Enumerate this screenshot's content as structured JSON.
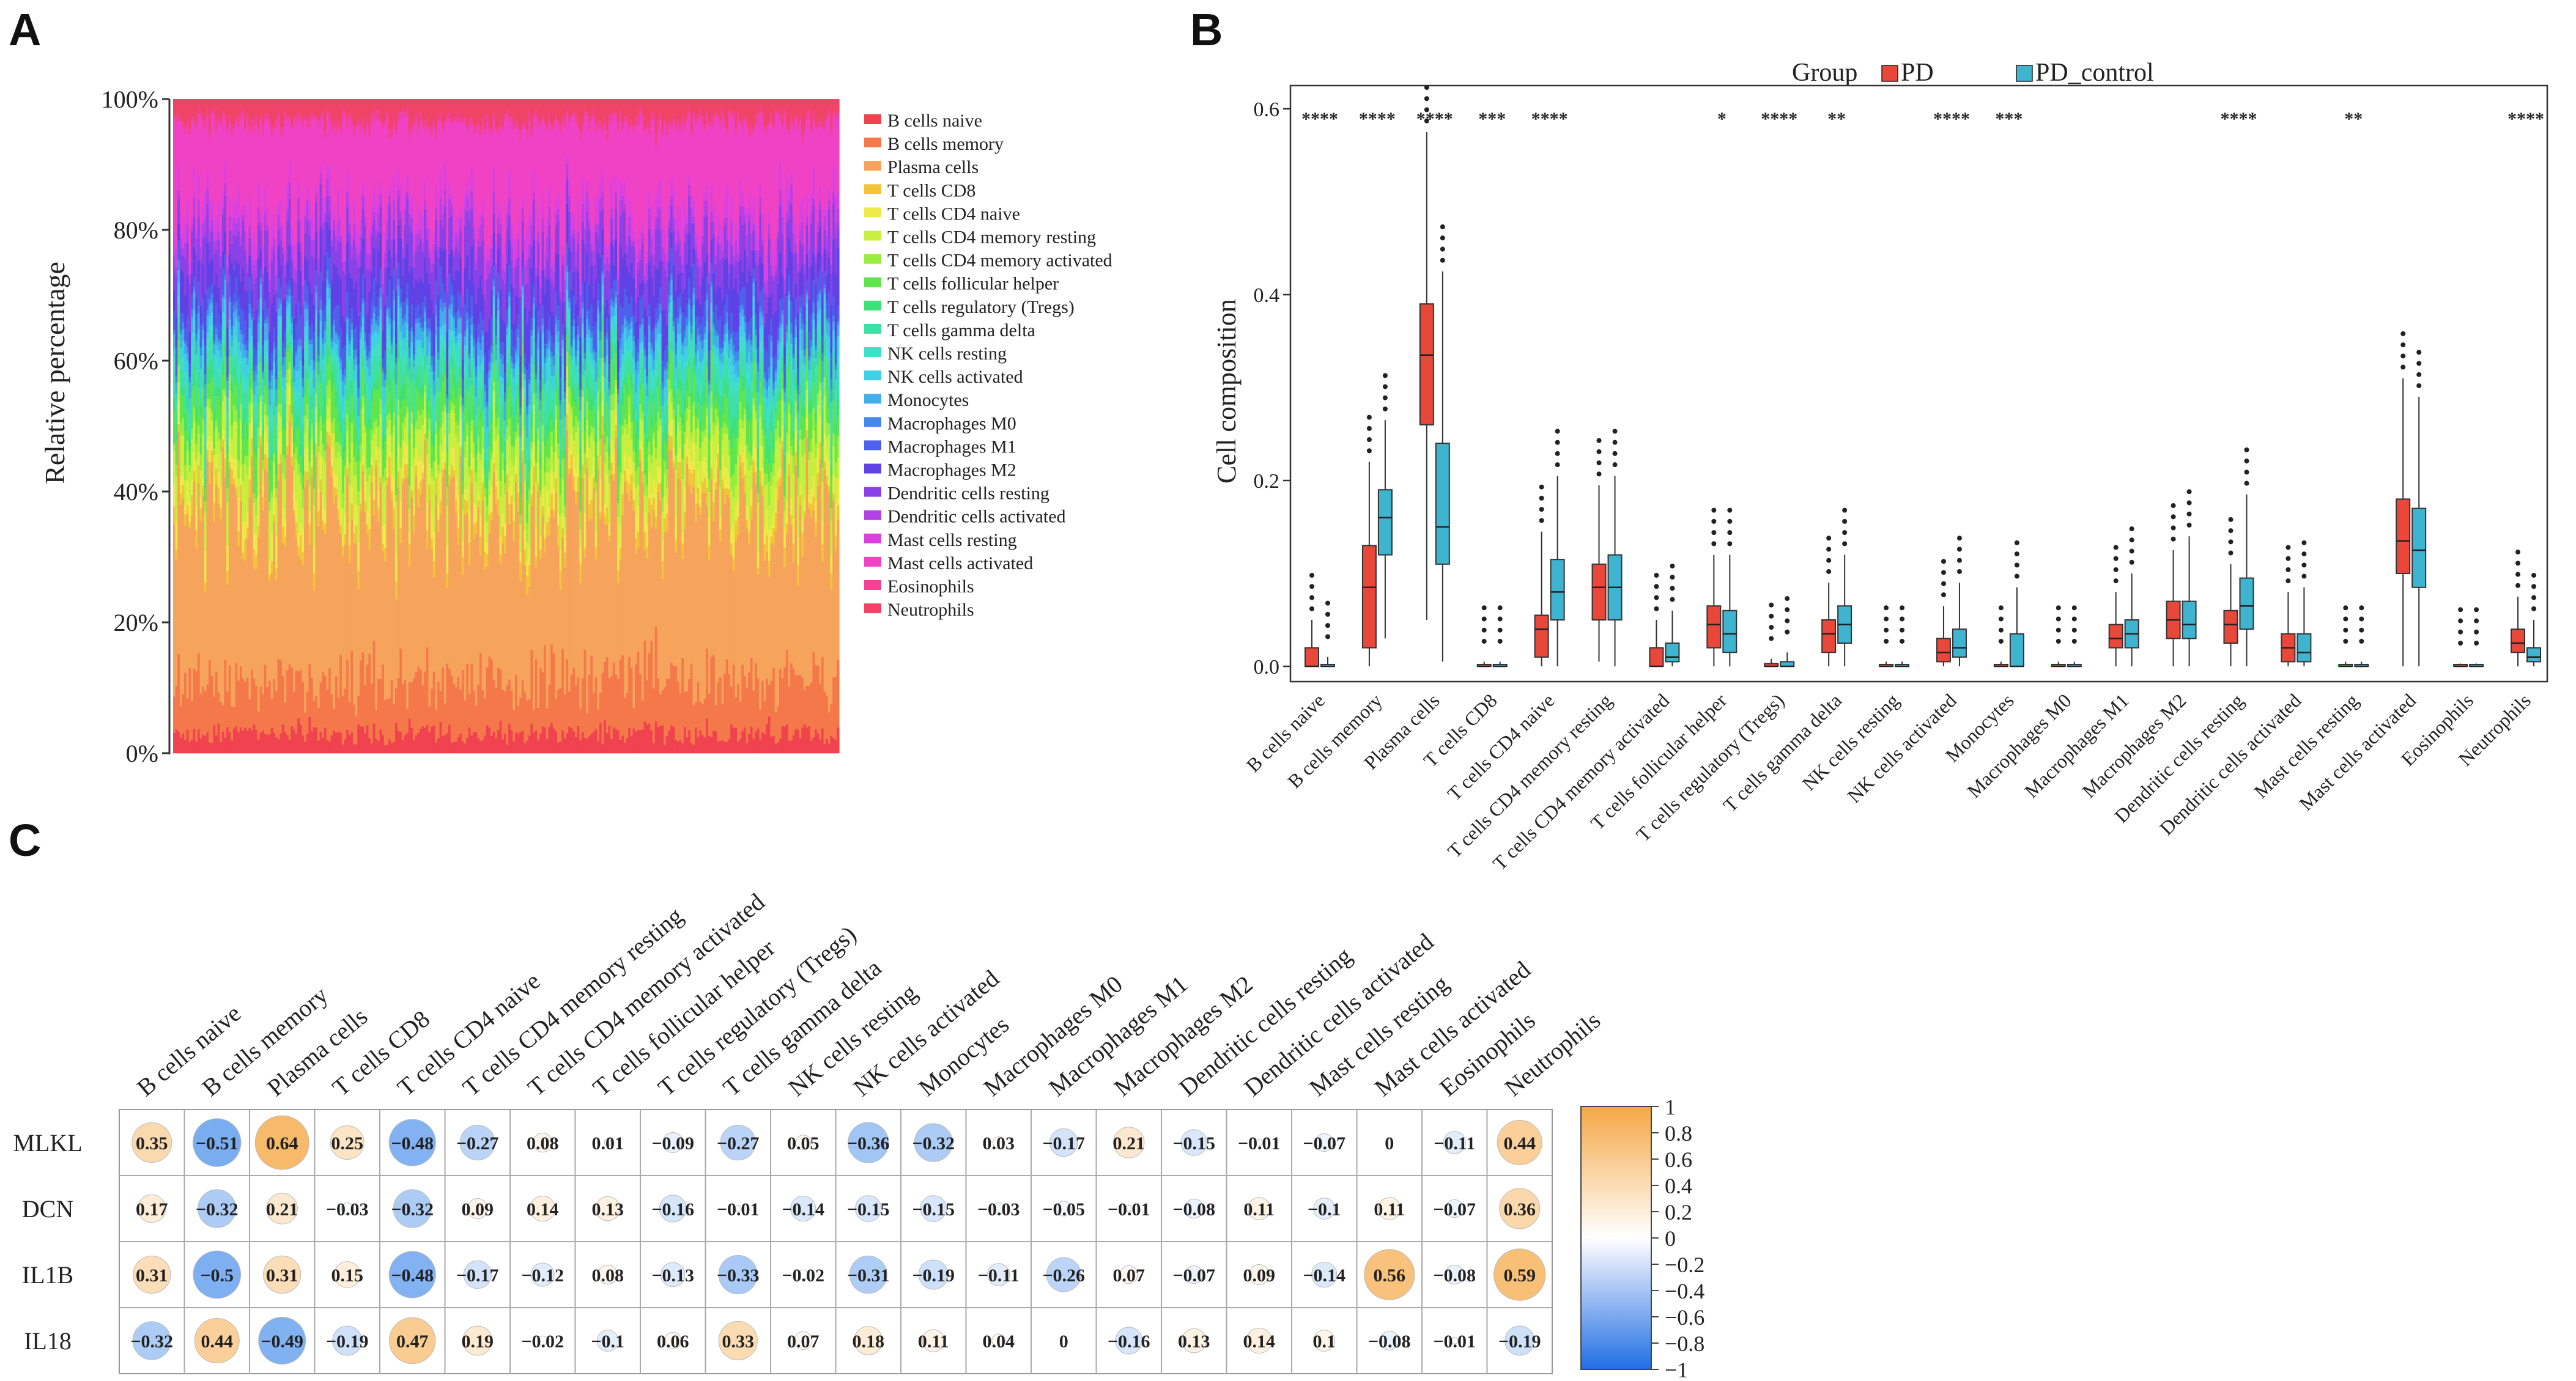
{
  "panels": {
    "a": "A",
    "b": "B",
    "c": "C"
  },
  "cell_types": [
    "B cells naive",
    "B cells memory",
    "Plasma cells",
    "T cells CD8",
    "T cells CD4 naive",
    "T cells CD4 memory resting",
    "T cells CD4 memory activated",
    "T cells follicular helper",
    "T cells regulatory (Tregs)",
    "T cells gamma delta",
    "NK cells resting",
    "NK cells activated",
    "Monocytes",
    "Macrophages M0",
    "Macrophages M1",
    "Macrophages M2",
    "Dendritic cells resting",
    "Dendritic cells activated",
    "Mast cells resting",
    "Mast cells activated",
    "Eosinophils",
    "Neutrophils"
  ],
  "colors": {
    "stack": [
      "#f0434f",
      "#f47849",
      "#f6a35c",
      "#f2c43a",
      "#eee949",
      "#c8ef3f",
      "#99ec40",
      "#5fe64e",
      "#3fe07a",
      "#3fe0a8",
      "#3fdfc8",
      "#3fd0e6",
      "#42aeea",
      "#4488ea",
      "#4d61ea",
      "#5f42e6",
      "#8a42e6",
      "#b342e6",
      "#d942e0",
      "#f042c4",
      "#f24296",
      "#f04466"
    ],
    "pd": "#e8473a",
    "pd_control": "#3fb4d1",
    "neg": "#2f7fe8",
    "pos": "#f5a845"
  },
  "chart_data": [
    {
      "type": "area",
      "title": "",
      "xlabel": "",
      "ylabel": "Relative percentage",
      "ylim": [
        0,
        100
      ],
      "ytick_labels": [
        "0%",
        "20%",
        "40%",
        "60%",
        "80%",
        "100%"
      ],
      "legend_title": "",
      "series": [
        {
          "name": "B cells naive",
          "values": [
            3.0
          ]
        },
        {
          "name": "B cells memory",
          "values": [
            8.0
          ]
        },
        {
          "name": "Plasma cells",
          "values": [
            26.0
          ]
        },
        {
          "name": "T cells CD8",
          "values": [
            2.0
          ]
        },
        {
          "name": "T cells CD4 naive",
          "values": [
            3.0
          ]
        },
        {
          "name": "T cells CD4 memory resting",
          "values": [
            5.0
          ]
        },
        {
          "name": "T cells CD4 memory activated",
          "values": [
            2.0
          ]
        },
        {
          "name": "T cells follicular helper",
          "values": [
            4.0
          ]
        },
        {
          "name": "T cells regulatory (Tregs)",
          "values": [
            2.0
          ]
        },
        {
          "name": "T cells gamma delta",
          "values": [
            3.0
          ]
        },
        {
          "name": "NK cells resting",
          "values": [
            2.0
          ]
        },
        {
          "name": "NK cells activated",
          "values": [
            2.0
          ]
        },
        {
          "name": "Monocytes",
          "values": [
            2.0
          ]
        },
        {
          "name": "Macrophages M0",
          "values": [
            1.0
          ]
        },
        {
          "name": "Macrophages M1",
          "values": [
            3.0
          ]
        },
        {
          "name": "Macrophages M2",
          "values": [
            5.0
          ]
        },
        {
          "name": "Dendritic cells resting",
          "values": [
            5.0
          ]
        },
        {
          "name": "Dendritic cells activated",
          "values": [
            2.0
          ]
        },
        {
          "name": "Mast cells resting",
          "values": [
            3.0
          ]
        },
        {
          "name": "Mast cells activated",
          "values": [
            14.0
          ]
        },
        {
          "name": "Eosinophils",
          "values": [
            1.0
          ]
        },
        {
          "name": "Neutrophils",
          "values": [
            3.0
          ]
        }
      ]
    },
    {
      "type": "box",
      "title": "",
      "xlabel": "",
      "ylabel": "Cell composition",
      "ylim": [
        0,
        0.6
      ],
      "ytick_labels": [
        "0.0",
        "0.2",
        "0.4",
        "0.6"
      ],
      "legend_title": "Group",
      "groups": [
        "PD",
        "PD_control"
      ],
      "categories": [
        "B cells naive",
        "B cells memory",
        "Plasma cells",
        "T cells CD8",
        "T cells CD4 naive",
        "T cells CD4 memory resting",
        "T cells CD4 memory activated",
        "T cells follicular helper",
        "T cells regulatory (Tregs)",
        "T cells gamma delta",
        "NK cells resting",
        "NK cells activated",
        "Monocytes",
        "Macrophages M0",
        "Macrophages M1",
        "Macrophages M2",
        "Dendritic cells resting",
        "Dendritic cells activated",
        "Mast cells resting",
        "Mast cells activated",
        "Eosinophils",
        "Neutrophils"
      ],
      "significance": [
        "****",
        "****",
        "****",
        "***",
        "****",
        "",
        "",
        "*",
        "****",
        "**",
        "",
        "****",
        "***",
        "",
        "",
        "",
        "****",
        "",
        "**",
        "",
        "",
        "****"
      ],
      "series": [
        {
          "name": "PD",
          "boxes": [
            [
              0,
              0,
              0,
              0.02,
              0.05
            ],
            [
              0,
              0.02,
              0.085,
              0.13,
              0.22
            ],
            [
              0.05,
              0.26,
              0.335,
              0.39,
              0.575
            ],
            [
              0,
              0,
              0,
              0.002,
              0.005
            ],
            [
              0,
              0.01,
              0.04,
              0.055,
              0.145
            ],
            [
              0.005,
              0.05,
              0.085,
              0.11,
              0.195
            ],
            [
              0,
              0,
              0,
              0.02,
              0.05
            ],
            [
              0,
              0.02,
              0.045,
              0.065,
              0.12
            ],
            [
              0,
              0,
              0,
              0.003,
              0.008
            ],
            [
              0,
              0.015,
              0.035,
              0.05,
              0.09
            ],
            [
              0,
              0,
              0,
              0.002,
              0.005
            ],
            [
              0,
              0.005,
              0.015,
              0.03,
              0.065
            ],
            [
              0,
              0,
              0,
              0.002,
              0.005
            ],
            [
              0,
              0,
              0,
              0.002,
              0.005
            ],
            [
              0,
              0.02,
              0.03,
              0.045,
              0.08
            ],
            [
              0,
              0.03,
              0.05,
              0.07,
              0.125
            ],
            [
              0,
              0.025,
              0.045,
              0.06,
              0.11
            ],
            [
              0,
              0.005,
              0.02,
              0.035,
              0.08
            ],
            [
              0,
              0,
              0,
              0.002,
              0.005
            ],
            [
              0,
              0.1,
              0.135,
              0.18,
              0.31
            ],
            [
              0,
              0,
              0,
              0.002,
              0.003
            ],
            [
              0,
              0.015,
              0.025,
              0.04,
              0.075
            ]
          ]
        },
        {
          "name": "PD_control",
          "boxes": [
            [
              0,
              0,
              0,
              0.002,
              0.01
            ],
            [
              0.03,
              0.12,
              0.16,
              0.19,
              0.265
            ],
            [
              0.005,
              0.11,
              0.15,
              0.24,
              0.425
            ],
            [
              0,
              0,
              0,
              0.002,
              0.005
            ],
            [
              0,
              0.05,
              0.08,
              0.115,
              0.205
            ],
            [
              0,
              0.05,
              0.085,
              0.12,
              0.205
            ],
            [
              0,
              0.005,
              0.01,
              0.025,
              0.06
            ],
            [
              0,
              0.015,
              0.035,
              0.06,
              0.12
            ],
            [
              0,
              0,
              0,
              0.005,
              0.015
            ],
            [
              0,
              0.025,
              0.045,
              0.065,
              0.12
            ],
            [
              0,
              0,
              0,
              0.002,
              0.005
            ],
            [
              0,
              0.01,
              0.02,
              0.04,
              0.09
            ],
            [
              0,
              0,
              0,
              0.035,
              0.085
            ],
            [
              0,
              0,
              0,
              0.002,
              0.005
            ],
            [
              0,
              0.02,
              0.035,
              0.05,
              0.1
            ],
            [
              0,
              0.03,
              0.045,
              0.07,
              0.14
            ],
            [
              0,
              0.04,
              0.065,
              0.095,
              0.185
            ],
            [
              0,
              0.005,
              0.015,
              0.035,
              0.085
            ],
            [
              0,
              0,
              0,
              0.002,
              0.005
            ],
            [
              0,
              0.085,
              0.125,
              0.17,
              0.29
            ],
            [
              0,
              0,
              0,
              0.002,
              0.003
            ],
            [
              0,
              0.005,
              0.01,
              0.02,
              0.05
            ]
          ]
        }
      ]
    },
    {
      "type": "heatmap",
      "title": "",
      "xlabel": "",
      "ylabel": "",
      "columns": [
        "B cells naive",
        "B cells memory",
        "Plasma cells",
        "T cells CD8",
        "T cells CD4 naive",
        "T cells CD4 memory resting",
        "T cells CD4 memory activated",
        "T cells follicular helper",
        "T cells regulatory (Tregs)",
        "T cells gamma delta",
        "NK cells resting",
        "NK cells activated",
        "Monocytes",
        "Macrophages M0",
        "Macrophages M1",
        "Macrophages M2",
        "Dendritic cells resting",
        "Dendritic cells activated",
        "Mast cells resting",
        "Mast cells activated",
        "Eosinophils",
        "Neutrophils"
      ],
      "rows": [
        "MLKL",
        "DCN",
        "IL1B",
        "IL18"
      ],
      "labels": [
        [
          "0.35",
          "−0.51",
          "0.64",
          "0.25",
          "−0.48",
          "−0.27",
          "0.08",
          "0.01",
          "−0.09",
          "−0.27",
          "0.05",
          "−0.36",
          "−0.32",
          "0.03",
          "−0.17",
          "0.21",
          "−0.15",
          "−0.01",
          "−0.07",
          "0",
          "−0.11",
          "0.44"
        ],
        [
          "0.17",
          "−0.32",
          "0.21",
          "−0.03",
          "−0.32",
          "0.09",
          "0.14",
          "0.13",
          "−0.16",
          "−0.01",
          "−0.14",
          "−0.15",
          "−0.15",
          "−0.03",
          "−0.05",
          "−0.01",
          "−0.08",
          "0.11",
          "−0.1",
          "0.11",
          "−0.07",
          "0.36"
        ],
        [
          "0.31",
          "−0.5",
          "0.31",
          "0.15",
          "−0.48",
          "−0.17",
          "−0.12",
          "0.08",
          "−0.13",
          "−0.33",
          "−0.02",
          "−0.31",
          "−0.19",
          "−0.11",
          "−0.26",
          "0.07",
          "−0.07",
          "0.09",
          "−0.14",
          "0.56",
          "−0.08",
          "0.59"
        ],
        [
          "−0.32",
          "0.44",
          "−0.49",
          "−0.19",
          "0.47",
          "0.19",
          "−0.02",
          "−0.1",
          "0.06",
          "0.33",
          "0.07",
          "0.18",
          "0.11",
          "0.04",
          "0",
          "−0.16",
          "0.13",
          "0.14",
          "0.1",
          "−0.08",
          "−0.01",
          "−0.19"
        ]
      ],
      "values": [
        [
          0.35,
          -0.51,
          0.64,
          0.25,
          -0.48,
          -0.27,
          0.08,
          0.01,
          -0.09,
          -0.27,
          0.05,
          -0.36,
          -0.32,
          0.03,
          -0.17,
          0.21,
          -0.15,
          -0.01,
          -0.07,
          0,
          -0.11,
          0.44
        ],
        [
          0.17,
          -0.32,
          0.21,
          -0.03,
          -0.32,
          0.09,
          0.14,
          0.13,
          -0.16,
          -0.01,
          -0.14,
          -0.15,
          -0.15,
          -0.03,
          -0.05,
          -0.01,
          -0.08,
          0.11,
          -0.1,
          0.11,
          -0.07,
          0.36
        ],
        [
          0.31,
          -0.5,
          0.31,
          0.15,
          -0.48,
          -0.17,
          -0.12,
          0.08,
          -0.13,
          -0.33,
          -0.02,
          -0.31,
          -0.19,
          -0.11,
          -0.26,
          0.07,
          -0.07,
          0.09,
          -0.14,
          0.56,
          -0.08,
          0.59
        ],
        [
          -0.32,
          0.44,
          -0.49,
          -0.19,
          0.47,
          0.19,
          -0.02,
          -0.1,
          0.06,
          0.33,
          0.07,
          0.18,
          0.11,
          0.04,
          0,
          -0.16,
          0.13,
          0.14,
          0.1,
          -0.08,
          -0.01,
          -0.19
        ]
      ],
      "colorbar_labels": [
        "1",
        "0.8",
        "0.6",
        "0.4",
        "0.2",
        "0",
        "−0.2",
        "−0.4",
        "−0.6",
        "−0.8",
        "−1"
      ],
      "colorbar_range": [
        -1,
        1
      ]
    }
  ]
}
